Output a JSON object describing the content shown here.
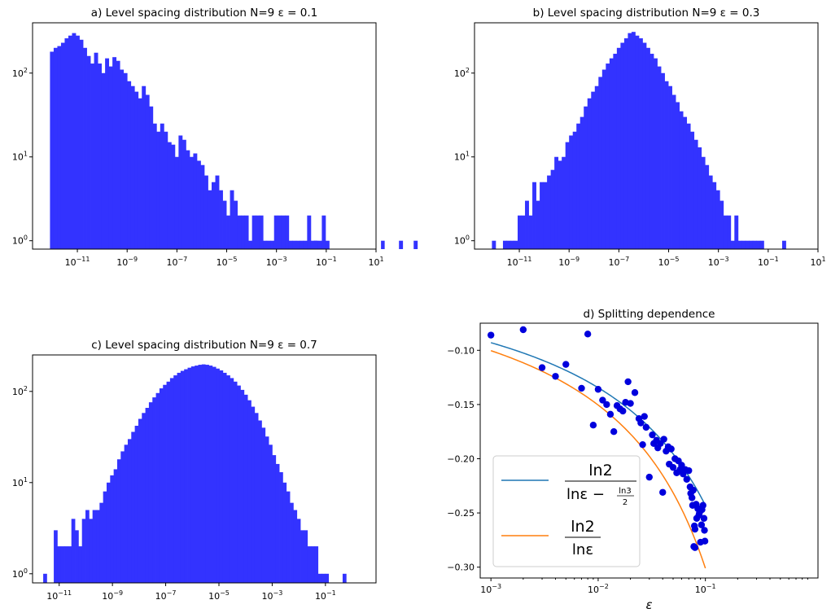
{
  "chart_data": [
    {
      "id": "a",
      "type": "bar",
      "title": "a) Level spacing distribution N=9 ε = 0.1",
      "x_scale": "log",
      "y_scale": "log",
      "xlim_exp": [
        -12.8,
        1.0
      ],
      "ylim_exp": [
        -0.1,
        2.6
      ],
      "bar_color": "#3333ff",
      "xticks": [
        {
          "exp": -11,
          "label": "10^-11"
        },
        {
          "exp": -9,
          "label": "10^-9"
        },
        {
          "exp": -7,
          "label": "10^-7"
        },
        {
          "exp": -5,
          "label": "10^-5"
        },
        {
          "exp": -3,
          "label": "10^-3"
        },
        {
          "exp": -1,
          "label": "10^-1"
        },
        {
          "exp": 1,
          "label": "10^1"
        }
      ],
      "yticks": [
        {
          "exp": 0,
          "label": "10^0"
        },
        {
          "exp": 1,
          "label": "10^1"
        },
        {
          "exp": 2,
          "label": "10^2"
        }
      ],
      "bins_start_exp": -12.1,
      "bins_width_exp": 0.1476,
      "counts": [
        180,
        200,
        210,
        230,
        260,
        280,
        300,
        280,
        250,
        200,
        160,
        130,
        175,
        130,
        100,
        150,
        120,
        155,
        140,
        110,
        100,
        80,
        70,
        60,
        50,
        70,
        55,
        40,
        25,
        20,
        25,
        20,
        15,
        14,
        10,
        18,
        16,
        12,
        10,
        11,
        9,
        8,
        6,
        4,
        5,
        6,
        4,
        3,
        2,
        4,
        3,
        2,
        2,
        2,
        1,
        2,
        2,
        2,
        1,
        1,
        1,
        2,
        2,
        2,
        2,
        1,
        1,
        1,
        1,
        1,
        2,
        1,
        1,
        1,
        2,
        1,
        0,
        0,
        0,
        0,
        0,
        0,
        0,
        0,
        0,
        0,
        0,
        0,
        0,
        0,
        0,
        0,
        0,
        0,
        0,
        1,
        0,
        0,
        0,
        1
      ],
      "extra_bars": [
        {
          "exp": -1.5,
          "count": 1
        },
        {
          "exp": 1.2,
          "count": 1
        }
      ]
    },
    {
      "id": "b",
      "type": "bar",
      "title": "b) Level spacing distribution N=9 ε = 0.3",
      "x_scale": "log",
      "y_scale": "log",
      "xlim_exp": [
        -12.8,
        1.0
      ],
      "ylim_exp": [
        -0.1,
        2.6
      ],
      "bar_color": "#3333ff",
      "xticks": [
        {
          "exp": -11,
          "label": "10^-11"
        },
        {
          "exp": -9,
          "label": "10^-9"
        },
        {
          "exp": -7,
          "label": "10^-7"
        },
        {
          "exp": -5,
          "label": "10^-5"
        },
        {
          "exp": -3,
          "label": "10^-3"
        },
        {
          "exp": -1,
          "label": "10^-1"
        },
        {
          "exp": 1,
          "label": "10^1"
        }
      ],
      "yticks": [
        {
          "exp": 0,
          "label": "10^0"
        },
        {
          "exp": 1,
          "label": "10^1"
        },
        {
          "exp": 2,
          "label": "10^2"
        }
      ],
      "bins_start_exp": -12.1,
      "bins_width_exp": 0.1476,
      "counts": [
        1,
        0,
        0,
        1,
        1,
        1,
        1,
        2,
        2,
        3,
        2,
        5,
        3,
        5,
        5,
        6,
        7,
        10,
        9,
        10,
        15,
        18,
        20,
        25,
        30,
        40,
        50,
        60,
        70,
        90,
        110,
        130,
        150,
        170,
        200,
        230,
        260,
        300,
        310,
        280,
        260,
        230,
        200,
        170,
        150,
        120,
        100,
        80,
        70,
        55,
        45,
        35,
        30,
        25,
        20,
        16,
        13,
        10,
        8,
        6,
        5,
        4,
        3,
        2,
        2,
        1,
        2,
        1,
        1,
        1,
        1,
        1,
        1,
        1,
        0,
        0,
        0,
        0,
        0,
        1
      ],
      "extra_bars": []
    },
    {
      "id": "c",
      "type": "bar",
      "title": "c) Level spacing distribution N=9 ε = 0.7",
      "x_scale": "log",
      "y_scale": "log",
      "xlim_exp": [
        -12.0,
        0.9
      ],
      "ylim_exp": [
        -0.1,
        2.4
      ],
      "bar_color": "#3333ff",
      "xticks": [
        {
          "exp": -11,
          "label": "10^-11"
        },
        {
          "exp": -9,
          "label": "10^-9"
        },
        {
          "exp": -7,
          "label": "10^-7"
        },
        {
          "exp": -5,
          "label": "10^-5"
        },
        {
          "exp": -3,
          "label": "10^-3"
        },
        {
          "exp": -1,
          "label": "10^-1"
        }
      ],
      "yticks": [
        {
          "exp": 0,
          "label": "10^0"
        },
        {
          "exp": 1,
          "label": "10^1"
        },
        {
          "exp": 2,
          "label": "10^2"
        }
      ],
      "bins_start_exp": -11.6,
      "bins_width_exp": 0.1323,
      "counts": [
        1,
        0,
        0,
        3,
        2,
        2,
        2,
        2,
        4,
        3,
        2,
        4,
        5,
        4,
        5,
        5,
        6,
        8,
        10,
        12,
        14,
        18,
        22,
        26,
        30,
        36,
        42,
        50,
        58,
        66,
        76,
        86,
        96,
        108,
        118,
        128,
        140,
        150,
        160,
        168,
        175,
        182,
        188,
        192,
        196,
        198,
        196,
        192,
        186,
        178,
        170,
        160,
        150,
        140,
        128,
        116,
        104,
        92,
        80,
        68,
        58,
        48,
        40,
        32,
        26,
        20,
        16,
        13,
        10,
        8,
        6,
        5,
        4,
        3,
        3,
        2,
        2,
        2,
        1,
        1,
        1,
        0,
        0,
        0,
        0,
        1
      ],
      "extra_bars": []
    },
    {
      "id": "d",
      "type": "scatter",
      "title": "d) Splitting dependence",
      "x_scale": "log",
      "xlim_exp": [
        -3.1,
        0.05
      ],
      "ylim": [
        -0.31,
        -0.075
      ],
      "xlabel": "ε",
      "xticks": [
        {
          "exp": -3,
          "label": "10^-3"
        },
        {
          "exp": -2,
          "label": "10^-2"
        },
        {
          "exp": -1,
          "label": "10^-1"
        }
      ],
      "yticks": [
        {
          "value": -0.1,
          "label": "−0.10"
        },
        {
          "value": -0.15,
          "label": "−0.15"
        },
        {
          "value": -0.2,
          "label": "−0.20"
        },
        {
          "value": -0.25,
          "label": "−0.25"
        },
        {
          "value": -0.3,
          "label": "−0.30"
        }
      ],
      "point_color": "#0000dd",
      "points": [
        [
          0.001,
          -0.086
        ],
        [
          0.002,
          -0.081
        ],
        [
          0.003,
          -0.116
        ],
        [
          0.004,
          -0.124
        ],
        [
          0.005,
          -0.113
        ],
        [
          0.007,
          -0.135
        ],
        [
          0.008,
          -0.085
        ],
        [
          0.009,
          -0.169
        ],
        [
          0.01,
          -0.136
        ],
        [
          0.011,
          -0.146
        ],
        [
          0.012,
          -0.15
        ],
        [
          0.013,
          -0.159
        ],
        [
          0.014,
          -0.175
        ],
        [
          0.015,
          -0.151
        ],
        [
          0.016,
          -0.154
        ],
        [
          0.017,
          -0.156
        ],
        [
          0.018,
          -0.148
        ],
        [
          0.019,
          -0.129
        ],
        [
          0.02,
          -0.149
        ],
        [
          0.022,
          -0.139
        ],
        [
          0.024,
          -0.163
        ],
        [
          0.025,
          -0.167
        ],
        [
          0.026,
          -0.187
        ],
        [
          0.027,
          -0.161
        ],
        [
          0.028,
          -0.171
        ],
        [
          0.03,
          -0.217
        ],
        [
          0.032,
          -0.178
        ],
        [
          0.033,
          -0.186
        ],
        [
          0.035,
          -0.183
        ],
        [
          0.036,
          -0.19
        ],
        [
          0.038,
          -0.186
        ],
        [
          0.04,
          -0.231
        ],
        [
          0.041,
          -0.182
        ],
        [
          0.043,
          -0.193
        ],
        [
          0.045,
          -0.189
        ],
        [
          0.046,
          -0.205
        ],
        [
          0.048,
          -0.191
        ],
        [
          0.05,
          -0.208
        ],
        [
          0.052,
          -0.2
        ],
        [
          0.054,
          -0.213
        ],
        [
          0.056,
          -0.202
        ],
        [
          0.058,
          -0.21
        ],
        [
          0.06,
          -0.206
        ],
        [
          0.062,
          -0.214
        ],
        [
          0.065,
          -0.21
        ],
        [
          0.067,
          -0.219
        ],
        [
          0.07,
          -0.211
        ],
        [
          0.072,
          -0.226
        ],
        [
          0.073,
          -0.232
        ],
        [
          0.075,
          -0.236
        ],
        [
          0.076,
          -0.243
        ],
        [
          0.077,
          -0.229
        ],
        [
          0.078,
          -0.281
        ],
        [
          0.079,
          -0.262
        ],
        [
          0.08,
          -0.265
        ],
        [
          0.082,
          -0.242
        ],
        [
          0.085,
          -0.246
        ],
        [
          0.088,
          -0.25
        ],
        [
          0.09,
          -0.277
        ],
        [
          0.092,
          -0.261
        ],
        [
          0.095,
          -0.243
        ],
        [
          0.097,
          -0.255
        ],
        [
          0.099,
          -0.276
        ],
        [
          0.08,
          -0.282
        ],
        [
          0.083,
          -0.255
        ],
        [
          0.087,
          -0.252
        ],
        [
          0.093,
          -0.247
        ],
        [
          0.098,
          -0.266
        ]
      ],
      "lines": [
        {
          "color": "#1f77b4",
          "formula": "ln2/(ln eps - ln3/2)"
        },
        {
          "color": "#ff7f0e",
          "formula": "ln2/ln eps"
        }
      ],
      "legend": {
        "placement": "lower-left",
        "entries": [
          {
            "num": "ln2",
            "den": "lnε − ",
            "den_frac_num": "ln3",
            "den_frac_den": "2"
          },
          {
            "num": "ln2",
            "den": "lnε"
          }
        ]
      }
    }
  ]
}
